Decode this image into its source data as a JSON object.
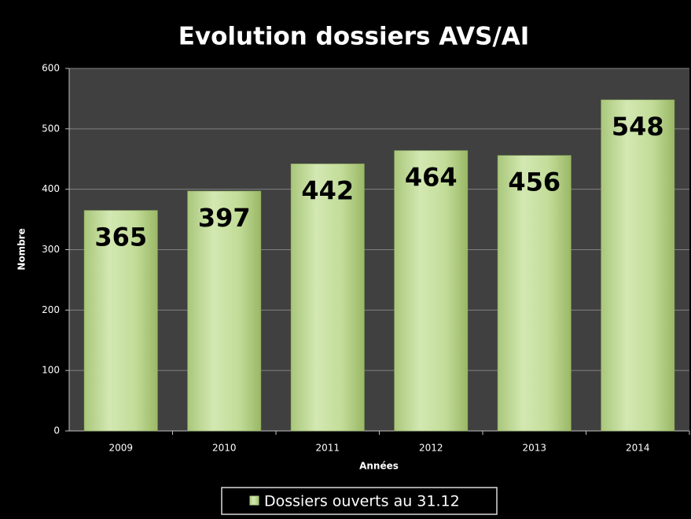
{
  "chart_data": {
    "type": "bar",
    "title": "Evolution dossiers AVS/AI",
    "categories": [
      "2009",
      "2010",
      "2011",
      "2012",
      "2013",
      "2014"
    ],
    "series": [
      {
        "name": "Dossiers ouverts au 31.12",
        "color": "#b5d38a",
        "values": [
          365,
          397,
          442,
          464,
          456,
          548
        ]
      }
    ],
    "x_label": "Années",
    "y_label": "Nombre",
    "ylim": [
      0,
      600
    ],
    "yticks": [
      0,
      100,
      200,
      300,
      400,
      500,
      600
    ],
    "grid": true,
    "legend": "bottom"
  }
}
